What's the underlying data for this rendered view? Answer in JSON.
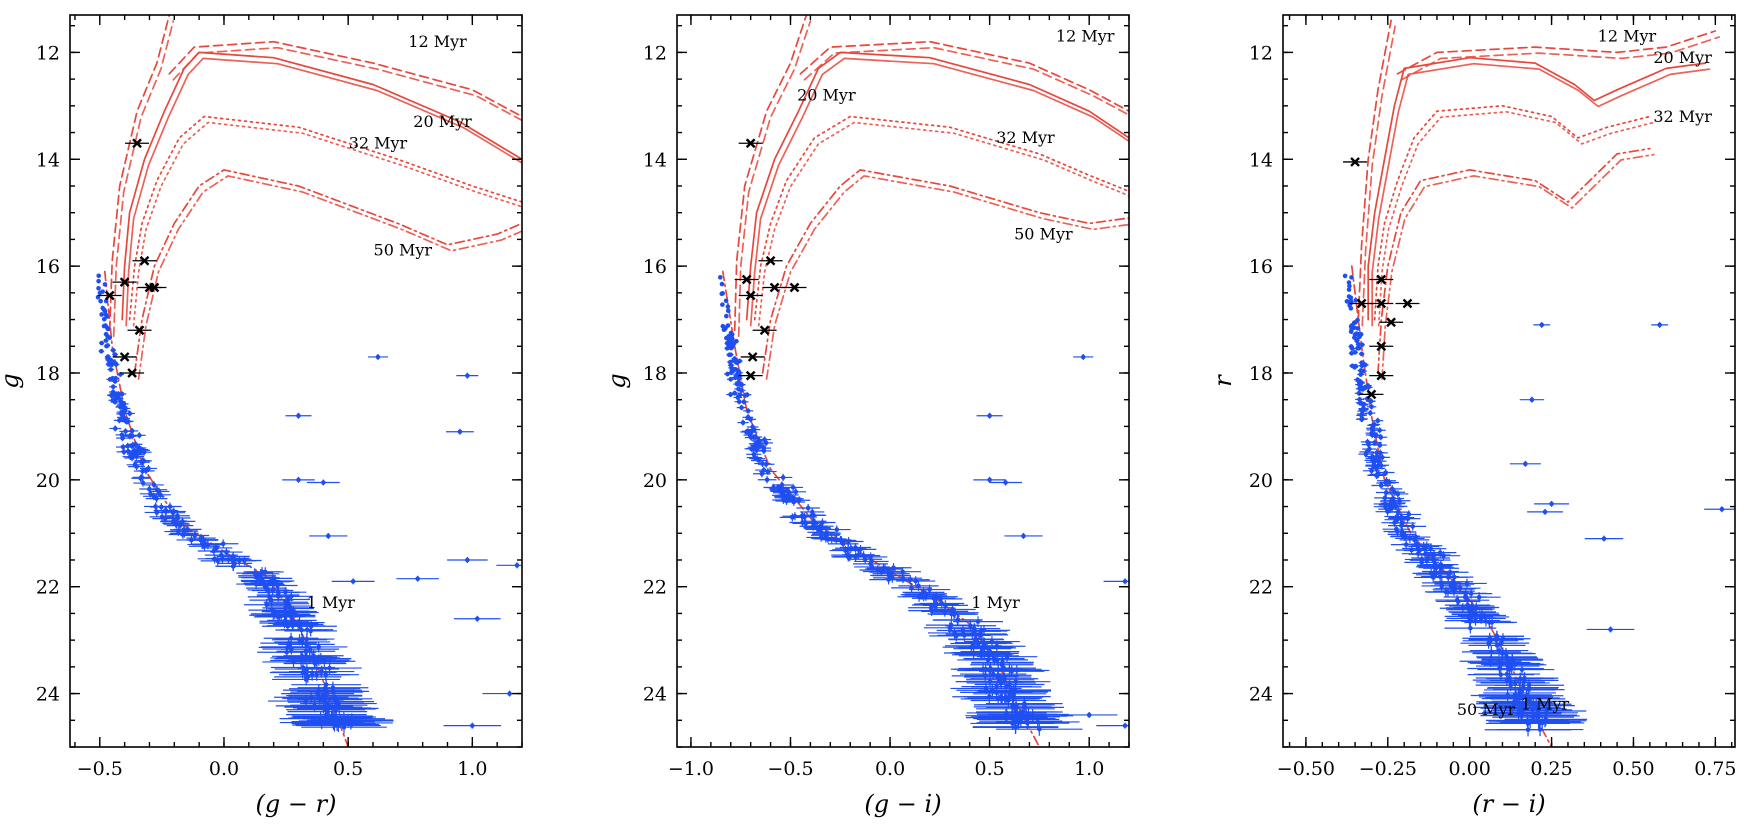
{
  "figure": {
    "description_free": true,
    "colors": {
      "isochrone": "#e8473b",
      "members": "#1f4ff0",
      "bright_stars": "#000000"
    }
  },
  "chart_data": [
    {
      "type": "scatter",
      "panel": "left",
      "xlabel": "(g − r)",
      "ylabel": "g",
      "xlim": [
        -0.62,
        1.2
      ],
      "ylim": [
        25.0,
        11.3
      ],
      "y_inverted": true,
      "xticks": [
        -0.5,
        0.0,
        0.5,
        1.0
      ],
      "xtick_labels": [
        "−0.5",
        "0.0",
        "0.5",
        "1.0"
      ],
      "yticks": [
        12,
        14,
        16,
        18,
        20,
        22,
        24
      ],
      "ytick_labels": [
        "12",
        "14",
        "16",
        "18",
        "20",
        "22",
        "24"
      ],
      "isochrones": [
        {
          "label": "1 Myr",
          "dash": "dashdot",
          "label_at": [
            0.43,
            22.4
          ],
          "points": [
            [
              -0.48,
              16.1
            ],
            [
              -0.45,
              17.5
            ],
            [
              -0.4,
              18.7
            ],
            [
              -0.32,
              19.8
            ],
            [
              -0.18,
              20.8
            ],
            [
              0.02,
              21.4
            ],
            [
              0.17,
              21.8
            ],
            [
              0.26,
              22.4
            ],
            [
              0.35,
              23.2
            ],
            [
              0.42,
              24.0
            ],
            [
              0.5,
              25.0
            ]
          ]
        },
        {
          "label": "12 Myr",
          "dash": "dashed",
          "label_at": [
            0.86,
            11.9
          ],
          "points": [
            [
              -0.46,
              17.2
            ],
            [
              -0.45,
              15.9
            ],
            [
              -0.42,
              14.5
            ],
            [
              -0.35,
              13.1
            ],
            [
              -0.27,
              12.2
            ],
            [
              -0.22,
              11.3
            ],
            null,
            [
              -0.22,
              12.4
            ],
            [
              -0.12,
              11.9
            ],
            [
              0.2,
              11.8
            ],
            [
              0.6,
              12.2
            ],
            [
              1.0,
              12.7
            ],
            [
              1.2,
              13.2
            ]
          ]
        },
        {
          "label": "20 Myr",
          "dash": "solid",
          "label_at": [
            0.88,
            13.4
          ],
          "points": [
            [
              -0.41,
              17.0
            ],
            [
              -0.4,
              16.0
            ],
            [
              -0.38,
              15.0
            ],
            [
              -0.32,
              14.0
            ],
            [
              -0.24,
              13.1
            ],
            [
              -0.16,
              12.3
            ],
            [
              -0.1,
              12.0
            ],
            [
              0.2,
              12.1
            ],
            [
              0.6,
              12.6
            ],
            [
              0.95,
              13.3
            ],
            [
              1.2,
              14.0
            ]
          ]
        },
        {
          "label": "32 Myr",
          "dash": "dotted",
          "label_at": [
            0.62,
            13.8
          ],
          "points": [
            [
              -0.38,
              17.0
            ],
            [
              -0.36,
              16.0
            ],
            [
              -0.33,
              15.2
            ],
            [
              -0.27,
              14.4
            ],
            [
              -0.18,
              13.6
            ],
            [
              -0.08,
              13.2
            ],
            [
              0.3,
              13.4
            ],
            [
              0.7,
              14.0
            ],
            [
              1.0,
              14.5
            ],
            [
              1.2,
              14.8
            ]
          ]
        },
        {
          "label": "50 Myr",
          "dash": "dashdot",
          "label_at": [
            0.72,
            15.8
          ],
          "points": [
            [
              -0.36,
              18.0
            ],
            [
              -0.33,
              17.0
            ],
            [
              -0.28,
              16.0
            ],
            [
              -0.2,
              15.2
            ],
            [
              -0.1,
              14.5
            ],
            [
              0.0,
              14.2
            ],
            [
              0.3,
              14.5
            ],
            [
              0.7,
              15.2
            ],
            [
              0.9,
              15.6
            ],
            [
              1.1,
              15.4
            ],
            [
              1.2,
              15.2
            ]
          ]
        }
      ],
      "bright_stars": [
        [
          -0.35,
          13.7
        ],
        [
          -0.32,
          15.9
        ],
        [
          -0.4,
          16.3
        ],
        [
          -0.3,
          16.4
        ],
        [
          -0.28,
          16.4
        ],
        [
          -0.46,
          16.55
        ],
        [
          -0.34,
          17.2
        ],
        [
          -0.4,
          17.7
        ],
        [
          -0.37,
          18.0
        ]
      ],
      "field_outliers": [
        [
          0.62,
          17.7
        ],
        [
          0.98,
          18.05
        ],
        [
          0.3,
          18.8
        ],
        [
          0.95,
          19.1
        ],
        [
          0.3,
          20.0
        ],
        [
          0.4,
          20.05
        ],
        [
          0.42,
          21.05
        ],
        [
          0.98,
          21.5
        ],
        [
          1.18,
          21.6
        ],
        [
          0.52,
          21.9
        ],
        [
          0.78,
          21.85
        ],
        [
          1.02,
          22.6
        ],
        [
          1.15,
          24.0
        ],
        [
          1.0,
          24.6
        ]
      ]
    },
    {
      "type": "scatter",
      "panel": "middle",
      "xlabel": "(g − i)",
      "ylabel": "g",
      "xlim": [
        -1.07,
        1.2
      ],
      "ylim": [
        25.0,
        11.3
      ],
      "y_inverted": true,
      "xticks": [
        -1.0,
        -0.5,
        0.0,
        0.5,
        1.0
      ],
      "xtick_labels": [
        "−1.0",
        "−0.5",
        "0.0",
        "0.5",
        "1.0"
      ],
      "yticks": [
        12,
        14,
        16,
        18,
        20,
        22,
        24
      ],
      "ytick_labels": [
        "12",
        "14",
        "16",
        "18",
        "20",
        "22",
        "24"
      ],
      "isochrones": [
        {
          "label": "1 Myr",
          "dash": "dashdot",
          "label_at": [
            0.53,
            22.4
          ],
          "points": [
            [
              -0.84,
              16.1
            ],
            [
              -0.78,
              17.5
            ],
            [
              -0.72,
              18.7
            ],
            [
              -0.6,
              19.8
            ],
            [
              -0.38,
              20.8
            ],
            [
              -0.05,
              21.6
            ],
            [
              0.22,
              22.2
            ],
            [
              0.4,
              22.7
            ],
            [
              0.55,
              23.5
            ],
            [
              0.65,
              24.3
            ],
            [
              0.75,
              25.0
            ]
          ]
        },
        {
          "label": "12 Myr",
          "dash": "dashed",
          "label_at": [
            0.98,
            11.8
          ],
          "points": [
            [
              -0.78,
              17.2
            ],
            [
              -0.77,
              15.9
            ],
            [
              -0.73,
              14.5
            ],
            [
              -0.62,
              13.1
            ],
            [
              -0.5,
              12.2
            ],
            [
              -0.42,
              11.3
            ],
            null,
            [
              -0.45,
              12.4
            ],
            [
              -0.3,
              11.9
            ],
            [
              0.2,
              11.8
            ],
            [
              0.7,
              12.2
            ],
            [
              1.0,
              12.7
            ],
            [
              1.2,
              13.1
            ]
          ]
        },
        {
          "label": "20 Myr",
          "dash": "solid",
          "label_at": [
            -0.32,
            12.9
          ],
          "points": [
            [
              -0.72,
              17.0
            ],
            [
              -0.7,
              16.0
            ],
            [
              -0.67,
              15.0
            ],
            [
              -0.58,
              14.0
            ],
            [
              -0.46,
              13.1
            ],
            [
              -0.36,
              12.3
            ],
            [
              -0.25,
              12.0
            ],
            [
              0.2,
              12.1
            ],
            [
              0.7,
              12.6
            ],
            [
              1.0,
              13.1
            ],
            [
              1.2,
              13.6
            ]
          ]
        },
        {
          "label": "32 Myr",
          "dash": "dotted",
          "label_at": [
            0.68,
            13.7
          ],
          "points": [
            [
              -0.68,
              17.0
            ],
            [
              -0.65,
              16.0
            ],
            [
              -0.6,
              15.2
            ],
            [
              -0.52,
              14.4
            ],
            [
              -0.38,
              13.6
            ],
            [
              -0.2,
              13.2
            ],
            [
              0.3,
              13.4
            ],
            [
              0.75,
              13.9
            ],
            [
              1.0,
              14.3
            ],
            [
              1.2,
              14.6
            ]
          ]
        },
        {
          "label": "50 Myr",
          "dash": "dashdot",
          "label_at": [
            0.77,
            15.5
          ],
          "points": [
            [
              -0.64,
              18.0
            ],
            [
              -0.6,
              17.0
            ],
            [
              -0.52,
              16.0
            ],
            [
              -0.4,
              15.2
            ],
            [
              -0.25,
              14.5
            ],
            [
              -0.15,
              14.2
            ],
            [
              0.3,
              14.5
            ],
            [
              0.75,
              15.0
            ],
            [
              1.0,
              15.2
            ],
            [
              1.2,
              15.1
            ]
          ]
        }
      ],
      "bright_stars": [
        [
          -0.7,
          13.7
        ],
        [
          -0.6,
          15.9
        ],
        [
          -0.72,
          16.25
        ],
        [
          -0.58,
          16.4
        ],
        [
          -0.48,
          16.4
        ],
        [
          -0.7,
          16.55
        ],
        [
          -0.63,
          17.2
        ],
        [
          -0.69,
          17.7
        ],
        [
          -0.7,
          18.05
        ]
      ],
      "field_outliers": [
        [
          0.97,
          17.7
        ],
        [
          0.5,
          18.8
        ],
        [
          0.5,
          20.0
        ],
        [
          0.58,
          20.05
        ],
        [
          0.67,
          21.05
        ],
        [
          1.18,
          21.9
        ],
        [
          1.18,
          24.6
        ],
        [
          1.0,
          24.4
        ]
      ]
    },
    {
      "type": "scatter",
      "panel": "right",
      "xlabel": "(r − i)",
      "ylabel": "r",
      "xlim": [
        -0.57,
        0.81
      ],
      "ylim": [
        25.0,
        11.3
      ],
      "y_inverted": true,
      "xticks": [
        -0.5,
        -0.25,
        0.0,
        0.25,
        0.5,
        0.75
      ],
      "xtick_labels": [
        "−0.50",
        "−0.25",
        "0.00",
        "0.25",
        "0.50",
        "0.75"
      ],
      "yticks": [
        12,
        14,
        16,
        18,
        20,
        22,
        24
      ],
      "ytick_labels": [
        "12",
        "14",
        "16",
        "18",
        "20",
        "22",
        "24"
      ],
      "isochrones": [
        {
          "label": "1 Myr",
          "dash": "dashdot",
          "label_at": [
            0.23,
            24.3
          ],
          "points": [
            [
              -0.36,
              16.0
            ],
            [
              -0.33,
              17.5
            ],
            [
              -0.3,
              18.8
            ],
            [
              -0.26,
              20.0
            ],
            [
              -0.18,
              21.0
            ],
            [
              -0.05,
              21.9
            ],
            [
              0.05,
              22.6
            ],
            [
              0.12,
              23.4
            ],
            [
              0.18,
              24.2
            ],
            [
              0.25,
              25.0
            ]
          ]
        },
        {
          "label": "12 Myr",
          "dash": "dashed",
          "label_at": [
            0.48,
            11.8
          ],
          "points": [
            [
              -0.34,
              17.0
            ],
            [
              -0.33,
              15.6
            ],
            [
              -0.31,
              14.0
            ],
            [
              -0.28,
              12.7
            ],
            [
              -0.24,
              11.4
            ],
            null,
            [
              -0.22,
              12.4
            ],
            [
              -0.1,
              12.0
            ],
            [
              0.2,
              11.9
            ],
            [
              0.45,
              12.0
            ],
            [
              0.6,
              11.9
            ],
            [
              0.75,
              11.6
            ]
          ]
        },
        {
          "label": "20 Myr",
          "dash": "solid",
          "label_at": [
            0.65,
            12.2
          ],
          "points": [
            [
              -0.31,
              17.0
            ],
            [
              -0.31,
              16.0
            ],
            [
              -0.29,
              15.0
            ],
            [
              -0.26,
              14.0
            ],
            [
              -0.23,
              13.0
            ],
            [
              -0.2,
              12.3
            ],
            [
              0.0,
              12.1
            ],
            [
              0.2,
              12.2
            ],
            [
              0.32,
              12.6
            ],
            [
              0.38,
              12.9
            ],
            [
              0.45,
              12.7
            ],
            [
              0.6,
              12.3
            ],
            [
              0.72,
              12.2
            ]
          ]
        },
        {
          "label": "32 Myr",
          "dash": "dotted",
          "label_at": [
            0.65,
            13.3
          ],
          "points": [
            [
              -0.29,
              17.0
            ],
            [
              -0.28,
              16.0
            ],
            [
              -0.26,
              15.2
            ],
            [
              -0.22,
              14.4
            ],
            [
              -0.17,
              13.6
            ],
            [
              -0.1,
              13.1
            ],
            [
              0.1,
              13.0
            ],
            [
              0.25,
              13.2
            ],
            [
              0.33,
              13.6
            ],
            [
              0.42,
              13.4
            ],
            [
              0.55,
              13.2
            ]
          ]
        },
        {
          "label": "50 Myr",
          "dash": "dashdot",
          "label_at": [
            0.05,
            24.4
          ],
          "points": [
            [
              -0.28,
              18.0
            ],
            [
              -0.27,
              17.0
            ],
            [
              -0.25,
              16.0
            ],
            [
              -0.21,
              15.0
            ],
            [
              -0.15,
              14.4
            ],
            [
              0.0,
              14.2
            ],
            [
              0.2,
              14.4
            ],
            [
              0.3,
              14.8
            ],
            [
              0.35,
              14.5
            ],
            [
              0.45,
              13.9
            ],
            [
              0.55,
              13.8
            ]
          ]
        }
      ],
      "bright_stars": [
        [
          -0.35,
          14.05
        ],
        [
          -0.27,
          16.25
        ],
        [
          -0.33,
          16.7
        ],
        [
          -0.27,
          16.7
        ],
        [
          -0.19,
          16.7
        ],
        [
          -0.24,
          17.05
        ],
        [
          -0.27,
          17.5
        ],
        [
          -0.27,
          18.05
        ],
        [
          -0.3,
          18.4
        ]
      ],
      "field_outliers": [
        [
          0.22,
          17.1
        ],
        [
          0.58,
          17.1
        ],
        [
          0.19,
          18.5
        ],
        [
          0.17,
          19.7
        ],
        [
          0.25,
          20.45
        ],
        [
          0.23,
          20.6
        ],
        [
          0.41,
          21.1
        ],
        [
          0.77,
          20.55
        ],
        [
          0.43,
          22.8
        ]
      ]
    }
  ]
}
